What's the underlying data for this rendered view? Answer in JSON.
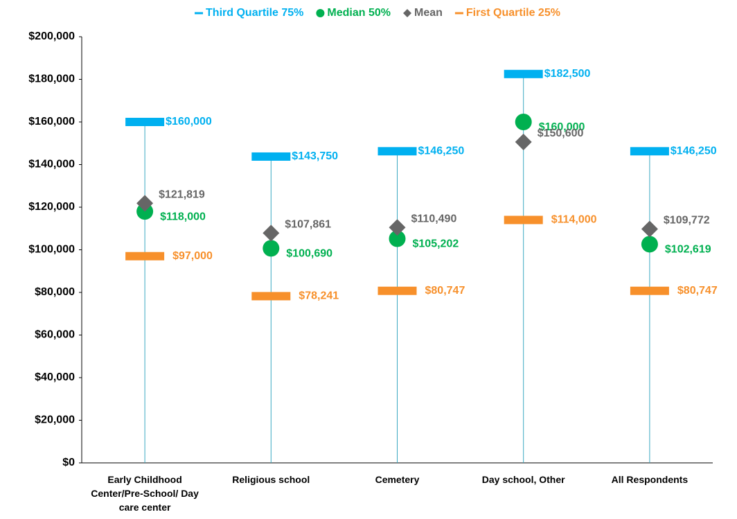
{
  "chart_data": {
    "type": "quartile",
    "categories": [
      "Early Childhood Center/Pre-School/ Day care center",
      "Religious school",
      "Cemetery",
      "Day school, Other",
      "All Respondents"
    ],
    "series": [
      {
        "name": "Third Quartile 75%",
        "color": "#00b0f0",
        "marker": "bar",
        "values": [
          160000,
          143750,
          146250,
          182500,
          146250
        ],
        "value_labels": [
          "$160,000",
          "$143,750",
          "$146,250",
          "$182,500",
          "$146,250"
        ]
      },
      {
        "name": "Median 50%",
        "color": "#00b050",
        "marker": "circle",
        "values": [
          118000,
          100690,
          105202,
          160000,
          102619
        ],
        "value_labels": [
          "$118,000",
          "$100,690",
          "$105,202",
          "$160,000",
          "$102,619"
        ]
      },
      {
        "name": "Mean",
        "color": "#666666",
        "marker": "diamond",
        "values": [
          121819,
          107861,
          110490,
          150600,
          109772
        ],
        "value_labels": [
          "$121,819",
          "$107,861",
          "$110,490",
          "$150,600",
          "$109,772"
        ]
      },
      {
        "name": "First Quartile 25%",
        "color": "#f7902b",
        "marker": "bar",
        "values": [
          97000,
          78241,
          80747,
          114000,
          80747
        ],
        "value_labels": [
          "$97,000",
          "$78,241",
          "$80,747",
          "$114,000",
          "$80,747"
        ]
      }
    ],
    "ylim": [
      0,
      200000
    ],
    "yticks": [
      {
        "value": 0,
        "label": "$0"
      },
      {
        "value": 20000,
        "label": "$20,000"
      },
      {
        "value": 40000,
        "label": "$40,000"
      },
      {
        "value": 60000,
        "label": "$60,000"
      },
      {
        "value": 80000,
        "label": "$80,000"
      },
      {
        "value": 100000,
        "label": "$100,000"
      },
      {
        "value": 120000,
        "label": "$120,000"
      },
      {
        "value": 140000,
        "label": "$140,000"
      },
      {
        "value": 160000,
        "label": "$160,000"
      },
      {
        "value": 180000,
        "label": "$180,000"
      },
      {
        "value": 200000,
        "label": "$200,000"
      }
    ],
    "legend": "top"
  }
}
